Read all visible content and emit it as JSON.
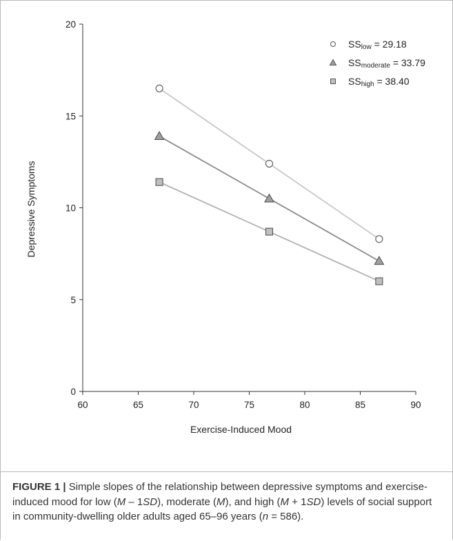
{
  "chart_data": {
    "type": "line",
    "xlabel": "Exercise-Induced Mood",
    "ylabel": "Depressive Symptoms",
    "xlim": [
      60,
      90
    ],
    "ylim": [
      0,
      20
    ],
    "xticks": [
      "60",
      "65",
      "70",
      "75",
      "80",
      "85",
      "90"
    ],
    "yticks": [
      "0",
      "5",
      "10",
      "15",
      "20"
    ],
    "grid": false,
    "legend_position": "top-right",
    "series": [
      {
        "name_main": "SS",
        "name_sub": "low",
        "name_value": " = 29.18",
        "marker": "circle",
        "marker_fill": "#ffffff",
        "line_color": "#c8c8c8",
        "x": [
          66.9,
          76.8,
          86.7
        ],
        "y": [
          16.5,
          12.4,
          8.3
        ]
      },
      {
        "name_main": "SS",
        "name_sub": "moderate",
        "name_value": " = 33.79",
        "marker": "triangle",
        "marker_fill": "#a0a0a0",
        "line_color": "#8c8c8c",
        "x": [
          66.9,
          76.8,
          86.7
        ],
        "y": [
          13.9,
          10.5,
          7.1
        ]
      },
      {
        "name_main": "SS",
        "name_sub": "high",
        "name_value": " = 38.40",
        "marker": "square",
        "marker_fill": "#c0c0c0",
        "line_color": "#b0b0b0",
        "x": [
          66.9,
          76.8,
          86.7
        ],
        "y": [
          11.4,
          8.7,
          6.0
        ]
      }
    ]
  },
  "caption": {
    "lead": "FIGURE 1 |",
    "text_html": " Simple slopes of the relationship between depressive symptoms and exercise-induced mood for low (<i>M</i> – 1<i>SD</i>), moderate (<i>M</i>), and high (<i>M</i> + 1<i>SD</i>) levels of social support in community-dwelling older adults aged 65–96 years (<i>n</i> = 586)."
  }
}
